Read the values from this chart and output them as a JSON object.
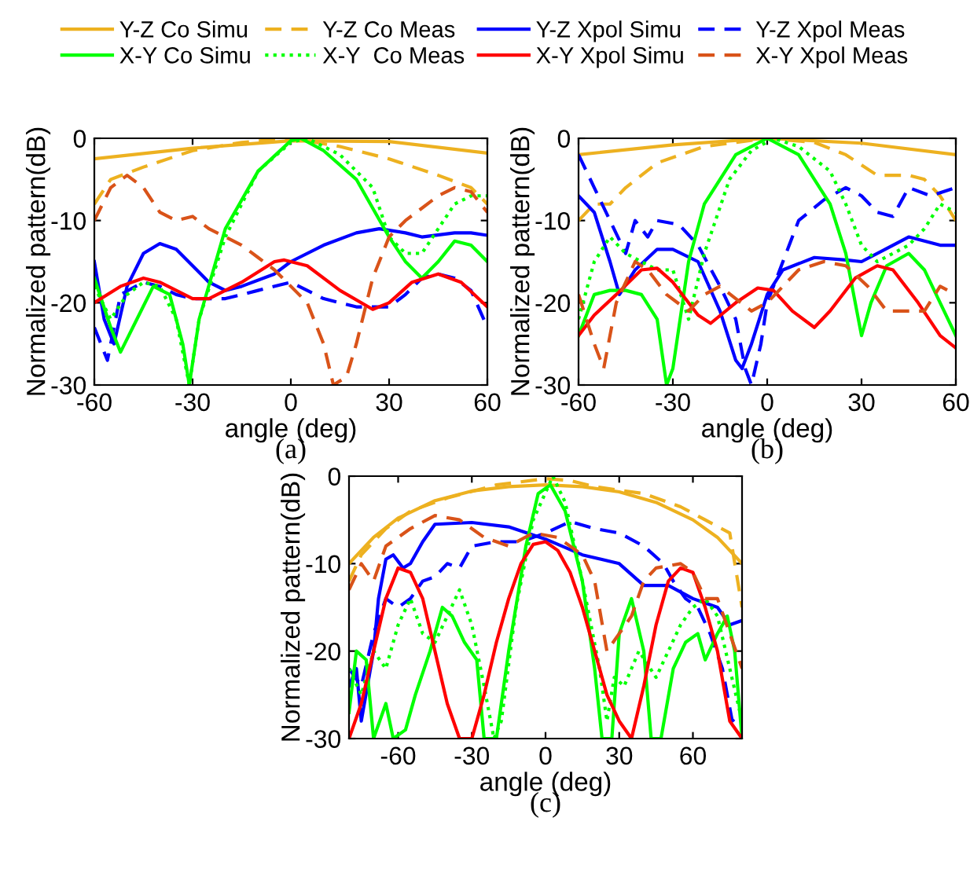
{
  "chart_data": [
    {
      "type": "line",
      "xlabel": "angle (deg)",
      "ylabel": "Normalized pattern(dB)",
      "annotations": [
        "(a)"
      ],
      "xlim": [
        -60,
        60
      ],
      "ylim": [
        -30,
        0
      ],
      "xticks": [
        -60,
        -30,
        0,
        30,
        60
      ],
      "yticks": [
        -30,
        -20,
        -10,
        0
      ],
      "grid": false,
      "legend": "top",
      "series": [
        {
          "name": "Y-Z Co Simu",
          "color": "#edb120",
          "line_style": "solid",
          "x": [
            -60,
            -30,
            0,
            30,
            60
          ],
          "values": [
            -2.5,
            -1.2,
            -0.3,
            -0.4,
            -1.8
          ]
        },
        {
          "name": "Y-Z Co Meas",
          "color": "#edb120",
          "line_style": "dashed",
          "x": [
            -60,
            -55,
            -45,
            -30,
            -15,
            0,
            15,
            30,
            45,
            55,
            60
          ],
          "values": [
            -8,
            -5,
            -3.5,
            -1.5,
            -0.5,
            0,
            -1,
            -2.5,
            -4.5,
            -6,
            -8
          ]
        },
        {
          "name": "Y-Z Xpol Simu",
          "color": "#0000ff",
          "line_style": "solid",
          "x": [
            -60,
            -57,
            -54,
            -50,
            -45,
            -40,
            -35,
            -25,
            -20,
            -15,
            -5,
            0,
            10,
            20,
            27,
            35,
            40,
            50,
            55,
            60
          ],
          "values": [
            -15,
            -22,
            -25,
            -18,
            -14,
            -12.8,
            -13.5,
            -17.5,
            -18.5,
            -18,
            -16.5,
            -15,
            -13,
            -11.5,
            -11,
            -11.5,
            -12,
            -11.5,
            -11.5,
            -11.8
          ]
        },
        {
          "name": "Y-Z Xpol Meas",
          "color": "#0000ff",
          "line_style": "dashed",
          "x": [
            -60,
            -56,
            -52,
            -45,
            -40,
            -35,
            -30,
            -20,
            -10,
            0,
            10,
            20,
            30,
            35,
            40,
            45,
            50,
            55,
            60
          ],
          "values": [
            -23,
            -27,
            -19,
            -17.5,
            -18,
            -19,
            -19.5,
            -19.5,
            -18.5,
            -17.5,
            -19.5,
            -20.5,
            -20.5,
            -19,
            -17,
            -16.5,
            -17,
            -18.5,
            -23
          ]
        },
        {
          "name": "X-Y Co Simu",
          "color": "#00ff00",
          "line_style": "solid",
          "x": [
            -60,
            -55,
            -52,
            -47,
            -42,
            -37,
            -33,
            -31,
            -28,
            -20,
            -10,
            0,
            3,
            10,
            20,
            30,
            35,
            40,
            45,
            50,
            55,
            60
          ],
          "values": [
            -17,
            -23,
            -26,
            -22,
            -18,
            -19,
            -25,
            -30,
            -22,
            -11,
            -4,
            -0.3,
            0,
            -1.5,
            -5,
            -12,
            -15,
            -17,
            -15,
            -12.5,
            -13,
            -15
          ]
        },
        {
          "name": "X-Y  Co Meas",
          "color": "#00ff00",
          "line_style": "dotted",
          "x": [
            -60,
            -55,
            -50,
            -45,
            -40,
            -35,
            -31,
            -28,
            -20,
            -10,
            0,
            5,
            15,
            25,
            30,
            35,
            40,
            45,
            50,
            55,
            60
          ],
          "values": [
            -18,
            -22,
            -19,
            -17.5,
            -18,
            -22,
            -30,
            -22,
            -12,
            -4,
            -0.5,
            0,
            -2,
            -6,
            -12,
            -14,
            -14,
            -11,
            -8,
            -7,
            -7
          ]
        },
        {
          "name": "X-Y Xpol Simu",
          "color": "#ff0000",
          "line_style": "solid",
          "x": [
            -60,
            -52,
            -45,
            -40,
            -30,
            -25,
            -15,
            -5,
            -2,
            5,
            15,
            25,
            30,
            37,
            45,
            52,
            60
          ],
          "values": [
            -20,
            -18,
            -17,
            -17.5,
            -19.5,
            -19.5,
            -17.5,
            -15,
            -14.8,
            -15.5,
            -18.5,
            -20.8,
            -20,
            -17.5,
            -16.5,
            -17.5,
            -20.5
          ]
        },
        {
          "name": "X-Y Xpol Meas",
          "color": "#d95319",
          "line_style": "dashed",
          "x": [
            -60,
            -55,
            -50,
            -45,
            -40,
            -35,
            -30,
            -25,
            -20,
            -15,
            -10,
            -5,
            0,
            5,
            10,
            13,
            17,
            20,
            25,
            30,
            35,
            40,
            45,
            50,
            55,
            60
          ],
          "values": [
            -10,
            -6,
            -4.5,
            -6,
            -9,
            -10,
            -9.5,
            -11,
            -12,
            -13,
            -14.5,
            -16,
            -18,
            -20,
            -25,
            -30,
            -29,
            -25,
            -17,
            -12,
            -10,
            -8.5,
            -7,
            -6,
            -6.5,
            -9
          ]
        }
      ]
    },
    {
      "type": "line",
      "xlabel": "angle (deg)",
      "ylabel": "Normalized pattern(dB)",
      "annotations": [
        "(b)"
      ],
      "xlim": [
        -60,
        60
      ],
      "ylim": [
        -30,
        0
      ],
      "xticks": [
        -60,
        -30,
        0,
        30,
        60
      ],
      "yticks": [
        -30,
        -20,
        -10,
        0
      ],
      "grid": false,
      "series": [
        {
          "color": "#edb120",
          "line_style": "solid",
          "x": [
            -60,
            -30,
            0,
            30,
            60
          ],
          "values": [
            -2,
            -0.8,
            0,
            -0.6,
            -2
          ]
        },
        {
          "color": "#edb120",
          "line_style": "dashed",
          "x": [
            -60,
            -55,
            -50,
            -45,
            -35,
            -20,
            0,
            15,
            25,
            35,
            45,
            50,
            55,
            60
          ],
          "values": [
            -10,
            -8,
            -8,
            -6,
            -3,
            -1,
            0,
            -0.5,
            -2,
            -4.5,
            -4.5,
            -5,
            -7,
            -10
          ]
        },
        {
          "color": "#0000ff",
          "line_style": "solid",
          "x": [
            -60,
            -55,
            -50,
            -47,
            -42,
            -35,
            -30,
            -22,
            -15,
            -10,
            -8,
            -5,
            0,
            5,
            15,
            25,
            30,
            40,
            45,
            55,
            60
          ],
          "values": [
            -7,
            -9,
            -15,
            -19,
            -16,
            -13.5,
            -13.5,
            -15,
            -21,
            -27,
            -28,
            -25,
            -19,
            -16,
            -14.5,
            -14.8,
            -15,
            -13,
            -12,
            -13,
            -13
          ]
        },
        {
          "color": "#0000ff",
          "line_style": "dashed",
          "x": [
            -60,
            -55,
            -50,
            -45,
            -42,
            -38,
            -35,
            -28,
            -22,
            -15,
            -10,
            -7,
            -5,
            -2,
            0,
            5,
            10,
            18,
            25,
            30,
            35,
            40,
            45,
            52,
            60
          ],
          "values": [
            -2,
            -6,
            -10,
            -14,
            -10,
            -12,
            -10,
            -10.5,
            -13,
            -18,
            -22,
            -28,
            -30,
            -25,
            -20,
            -15,
            -10,
            -7.5,
            -6,
            -7,
            -9,
            -9.5,
            -6,
            -7,
            -6
          ]
        },
        {
          "color": "#00ff00",
          "line_style": "solid",
          "x": [
            -60,
            -55,
            -50,
            -45,
            -40,
            -35,
            -32,
            -30,
            -25,
            -20,
            -10,
            0,
            10,
            20,
            25,
            30,
            33,
            38,
            45,
            50,
            55,
            60
          ],
          "values": [
            -24,
            -19,
            -18.5,
            -18.5,
            -19,
            -22,
            -30,
            -28,
            -15,
            -8,
            -2,
            0,
            -2,
            -8,
            -14,
            -24,
            -20,
            -15.5,
            -14,
            -16,
            -20,
            -24
          ]
        },
        {
          "color": "#00ff00",
          "line_style": "dotted",
          "x": [
            -60,
            -55,
            -50,
            -45,
            -40,
            -35,
            -30,
            -25,
            -20,
            -12,
            -5,
            2,
            10,
            20,
            25,
            30,
            35,
            45,
            50,
            55,
            60
          ],
          "values": [
            -22,
            -15,
            -12,
            -14,
            -15,
            -16,
            -16,
            -22,
            -14,
            -5,
            -1.5,
            0,
            -1,
            -4,
            -8,
            -13,
            -15,
            -13,
            -11,
            -8,
            -9
          ]
        },
        {
          "color": "#ff0000",
          "line_style": "solid",
          "x": [
            -60,
            -55,
            -48,
            -40,
            -35,
            -30,
            -22,
            -18,
            -10,
            -3,
            2,
            8,
            15,
            20,
            28,
            35,
            40,
            48,
            55,
            60
          ],
          "values": [
            -24,
            -21.5,
            -19,
            -16,
            -15.8,
            -17.5,
            -21.5,
            -22.5,
            -20,
            -18.2,
            -18.5,
            -21,
            -23,
            -21,
            -17,
            -15.5,
            -16,
            -20,
            -24,
            -25.5
          ]
        },
        {
          "color": "#d95319",
          "line_style": "dashed",
          "x": [
            -60,
            -55,
            -52,
            -48,
            -42,
            -38,
            -32,
            -25,
            -20,
            -15,
            -10,
            -5,
            0,
            5,
            10,
            18,
            25,
            32,
            38,
            45,
            50,
            55,
            60
          ],
          "values": [
            -19,
            -25,
            -28,
            -20,
            -15,
            -16,
            -19,
            -21,
            -19,
            -18,
            -19.5,
            -21,
            -20,
            -18,
            -16,
            -15,
            -15.5,
            -18,
            -21,
            -21,
            -21,
            -18,
            -19
          ]
        }
      ]
    },
    {
      "type": "line",
      "xlabel": "angle (deg)",
      "ylabel": "Normalized pattern(dB)",
      "annotations": [
        "(c)"
      ],
      "xlim": [
        -80,
        80
      ],
      "ylim": [
        -30,
        0
      ],
      "xticks": [
        -60,
        -30,
        0,
        30,
        60
      ],
      "yticks": [
        -30,
        -20,
        -10,
        0
      ],
      "grid": false,
      "series": [
        {
          "color": "#edb120",
          "line_style": "solid",
          "x": [
            -80,
            -70,
            -60,
            -45,
            -30,
            -15,
            0,
            15,
            30,
            45,
            60,
            70,
            80
          ],
          "values": [
            -10,
            -7,
            -4.8,
            -2.8,
            -1.7,
            -1.2,
            -1,
            -1.2,
            -1.8,
            -3,
            -5,
            -7,
            -10
          ]
        },
        {
          "color": "#edb120",
          "line_style": "dashed",
          "x": [
            -80,
            -75,
            -65,
            -55,
            -40,
            -20,
            0,
            10,
            20,
            40,
            55,
            65,
            75,
            80
          ],
          "values": [
            -12,
            -9,
            -6,
            -4,
            -2.5,
            -1,
            -0.3,
            -0.5,
            -1.2,
            -2,
            -3.5,
            -5,
            -6.5,
            -15
          ]
        },
        {
          "color": "#0000ff",
          "line_style": "solid",
          "x": [
            -80,
            -77,
            -75,
            -70,
            -68,
            -65,
            -62,
            -58,
            -55,
            -50,
            -45,
            -30,
            -15,
            0,
            15,
            30,
            40,
            50,
            60,
            70,
            75,
            80
          ],
          "values": [
            -24,
            -22,
            -28,
            -20,
            -14,
            -9.5,
            -9,
            -10.5,
            -10,
            -7.5,
            -5.5,
            -5.3,
            -5.8,
            -7.2,
            -9,
            -10,
            -12.5,
            -12.5,
            -14,
            -15,
            -17,
            -16.5
          ]
        },
        {
          "color": "#0000ff",
          "line_style": "dashed",
          "x": [
            -80,
            -75,
            -70,
            -65,
            -60,
            -55,
            -50,
            -45,
            -40,
            -35,
            -30,
            -20,
            -10,
            0,
            10,
            20,
            30,
            40,
            48,
            52,
            57,
            62,
            67,
            72,
            76,
            80
          ],
          "values": [
            -22,
            -24,
            -18,
            -14,
            -15,
            -14,
            -12,
            -11.5,
            -10,
            -10.5,
            -8,
            -7.5,
            -7.5,
            -6.5,
            -5.2,
            -6,
            -6.5,
            -8,
            -10,
            -12,
            -14,
            -15,
            -18,
            -22,
            -28,
            -27
          ]
        },
        {
          "color": "#00ff00",
          "line_style": "solid",
          "x": [
            -80,
            -77,
            -73,
            -70,
            -65,
            -62,
            -57,
            -53,
            -47,
            -42,
            -38,
            -33,
            -28,
            -25,
            -20,
            -15,
            -8,
            -3,
            2,
            8,
            15,
            20,
            23,
            27,
            30,
            35,
            40,
            43,
            47,
            52,
            57,
            62,
            65,
            70,
            74,
            77,
            80
          ],
          "values": [
            -27,
            -20,
            -21,
            -30,
            -26,
            -30,
            -29,
            -25,
            -20,
            -15,
            -16,
            -19,
            -21,
            -30,
            -30,
            -20,
            -8,
            -2,
            -1,
            -4,
            -12,
            -22,
            -30,
            -30,
            -18,
            -14,
            -20,
            -30,
            -30,
            -22,
            -19,
            -18,
            -21,
            -18,
            -16,
            -20,
            -30
          ]
        },
        {
          "color": "#00ff00",
          "line_style": "dotted",
          "x": [
            -80,
            -75,
            -70,
            -65,
            -60,
            -55,
            -50,
            -45,
            -40,
            -35,
            -30,
            -25,
            -21,
            -18,
            -12,
            -5,
            3,
            8,
            15,
            22,
            25,
            28,
            32,
            38,
            45,
            50,
            55,
            60,
            65,
            70,
            75,
            80
          ],
          "values": [
            -22,
            -25,
            -20,
            -22,
            -17,
            -14,
            -18,
            -19,
            -16,
            -13,
            -17,
            -24,
            -30,
            -28,
            -15,
            -5,
            0,
            -3,
            -12,
            -22,
            -28,
            -23,
            -24,
            -20,
            -23,
            -20,
            -17,
            -15,
            -14,
            -16,
            -22,
            -28
          ]
        },
        {
          "color": "#ff0000",
          "line_style": "solid",
          "x": [
            -80,
            -75,
            -70,
            -65,
            -60,
            -55,
            -50,
            -45,
            -40,
            -35,
            -30,
            -25,
            -20,
            -15,
            -10,
            -5,
            0,
            5,
            10,
            15,
            20,
            25,
            30,
            35,
            40,
            45,
            50,
            55,
            60,
            65,
            70,
            75,
            80
          ],
          "values": [
            -30,
            -26,
            -20,
            -14,
            -10.5,
            -11,
            -14,
            -20,
            -26,
            -30,
            -30,
            -25,
            -19,
            -14,
            -10,
            -7.8,
            -7.5,
            -8.5,
            -11,
            -15,
            -20,
            -25,
            -28,
            -30,
            -24,
            -17,
            -12,
            -10.5,
            -11,
            -15,
            -20,
            -28,
            -30
          ]
        },
        {
          "color": "#d95319",
          "line_style": "dashed",
          "x": [
            -80,
            -75,
            -70,
            -65,
            -60,
            -55,
            -45,
            -35,
            -25,
            -15,
            -5,
            5,
            15,
            20,
            25,
            30,
            35,
            40,
            45,
            55,
            60,
            65,
            70,
            75,
            80
          ],
          "values": [
            -13,
            -10,
            -12,
            -8,
            -7,
            -6,
            -4.5,
            -5,
            -7,
            -8,
            -6.5,
            -7,
            -9,
            -12,
            -20,
            -18,
            -16,
            -12,
            -10.5,
            -10,
            -11,
            -14,
            -14,
            -18,
            -22
          ]
        }
      ]
    }
  ]
}
